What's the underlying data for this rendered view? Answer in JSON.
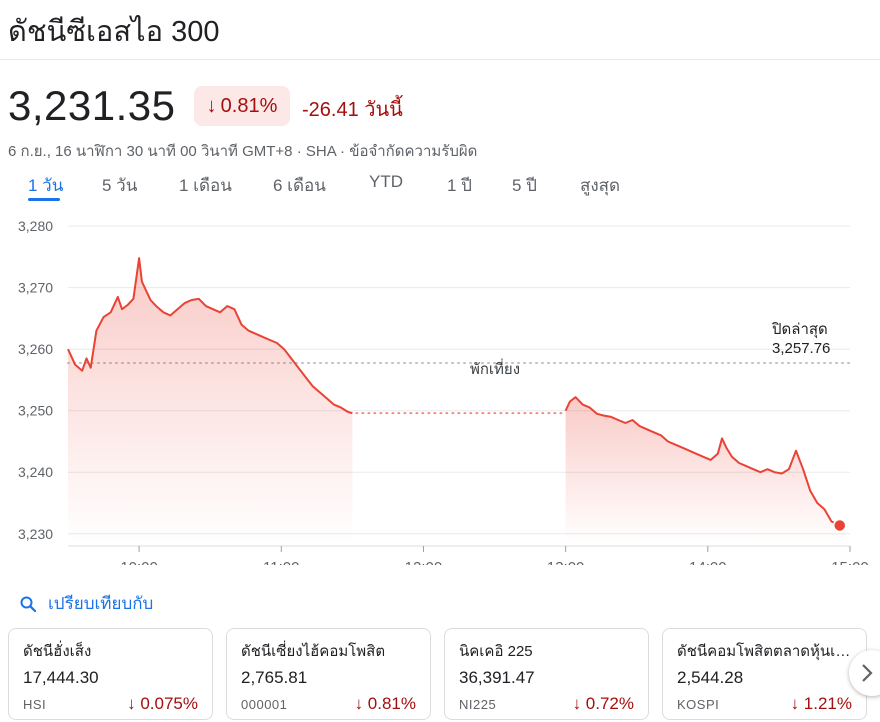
{
  "header": {
    "title": "ดัชนีซีเอสไอ 300",
    "price": "3,231.35",
    "change_pct": "0.81%",
    "change_abs": "-26.41 วันนี้",
    "meta": "6 ก.ย., 16 นาฬิกา 30 นาที 00 วินาที GMT+8 · SHA · ข้อจำกัดความรับผิด"
  },
  "tabs": [
    {
      "label": "1 วัน",
      "active": true
    },
    {
      "label": "5 วัน"
    },
    {
      "label": "1 เดือน"
    },
    {
      "label": "6 เดือน"
    },
    {
      "label": "YTD"
    },
    {
      "label": "1 ปี"
    },
    {
      "label": "5 ปี"
    },
    {
      "label": "สูงสุด"
    }
  ],
  "colors": {
    "negative": "#a50e0e",
    "line": "#ea4335",
    "accent": "#1a73e8"
  },
  "chart_data": {
    "type": "area",
    "ylim": [
      3228.5,
      3281
    ],
    "yticks": [
      3230,
      3240,
      3250,
      3260,
      3270,
      3280
    ],
    "ytick_labels": [
      "3,230",
      "3,240",
      "3,250",
      "3,260",
      "3,270",
      "3,280"
    ],
    "xticks": [
      10,
      11,
      12,
      13,
      14,
      15
    ],
    "xtick_labels": [
      "10:00",
      "11:00",
      "12:00",
      "13:00",
      "14:00",
      "15:00"
    ],
    "xlim": [
      9.5,
      15
    ],
    "grid": true,
    "previous_close": {
      "label": "ปิดล่าสุด",
      "value_label": "3,257.76",
      "value": 3257.76
    },
    "lunch_break": {
      "label": "พักเที่ยง",
      "start": 11.5,
      "end": 13.0,
      "level": 3249.6
    },
    "session1": {
      "x": [
        9.5,
        9.55,
        9.6,
        9.63,
        9.66,
        9.7,
        9.75,
        9.8,
        9.85,
        9.88,
        9.92,
        9.96,
        10.0,
        10.02,
        10.05,
        10.08,
        10.12,
        10.17,
        10.22,
        10.27,
        10.32,
        10.37,
        10.42,
        10.47,
        10.52,
        10.57,
        10.62,
        10.67,
        10.72,
        10.77,
        10.82,
        10.87,
        10.92,
        10.97,
        11.02,
        11.07,
        11.12,
        11.17,
        11.22,
        11.27,
        11.32,
        11.37,
        11.42,
        11.47,
        11.5
      ],
      "values": [
        3260.0,
        3257.5,
        3256.5,
        3258.5,
        3257.0,
        3263.0,
        3265.2,
        3266.0,
        3268.5,
        3266.5,
        3267.2,
        3268.2,
        3274.8,
        3271.0,
        3269.5,
        3268.0,
        3267.0,
        3266.0,
        3265.5,
        3266.5,
        3267.5,
        3268.0,
        3268.2,
        3267.0,
        3266.5,
        3266.0,
        3267.0,
        3266.5,
        3264.0,
        3263.0,
        3262.5,
        3262.0,
        3261.5,
        3261.0,
        3260.0,
        3258.5,
        3257.0,
        3255.5,
        3254.0,
        3253.0,
        3252.0,
        3251.0,
        3250.5,
        3249.8,
        3249.6
      ]
    },
    "session2": {
      "x": [
        13.0,
        13.03,
        13.07,
        13.12,
        13.17,
        13.22,
        13.27,
        13.32,
        13.37,
        13.42,
        13.47,
        13.52,
        13.57,
        13.62,
        13.67,
        13.72,
        13.77,
        13.82,
        13.87,
        13.92,
        13.97,
        14.02,
        14.07,
        14.1,
        14.13,
        14.17,
        14.22,
        14.27,
        14.32,
        14.37,
        14.42,
        14.47,
        14.52,
        14.57,
        14.62,
        14.67,
        14.72,
        14.77,
        14.82,
        14.87,
        14.92,
        14.97
      ],
      "values": [
        3250.0,
        3251.5,
        3252.2,
        3251.0,
        3250.5,
        3249.5,
        3249.2,
        3249.0,
        3248.5,
        3248.0,
        3248.5,
        3247.5,
        3247.0,
        3246.5,
        3246.0,
        3245.0,
        3244.5,
        3244.0,
        3243.5,
        3243.0,
        3242.5,
        3242.0,
        3243.0,
        3245.5,
        3244.0,
        3242.5,
        3241.5,
        3241.0,
        3240.5,
        3240.0,
        3240.5,
        3240.0,
        3239.8,
        3240.5,
        3243.5,
        3240.5,
        3237.0,
        3235.0,
        3234.0,
        3232.0,
        3231.5,
        3231.35
      ]
    }
  },
  "compare": {
    "label": "เปรียบเทียบกับ"
  },
  "cards": [
    {
      "name": "ดัชนีฮั่งเส็ง",
      "value": "17,444.30",
      "ticker": "HSI",
      "pct": "0.075%"
    },
    {
      "name": "ดัชนีเซี่ยงไฮ้คอมโพสิต",
      "value": "2,765.81",
      "ticker": "000001",
      "pct": "0.81%"
    },
    {
      "name": "นิคเคอิ 225",
      "value": "36,391.47",
      "ticker": "NI225",
      "pct": "0.72%"
    },
    {
      "name": "ดัชนีคอมโพสิตตลาดหุ้นเกาหลี",
      "value": "2,544.28",
      "ticker": "KOSPI",
      "pct": "1.21%"
    }
  ]
}
